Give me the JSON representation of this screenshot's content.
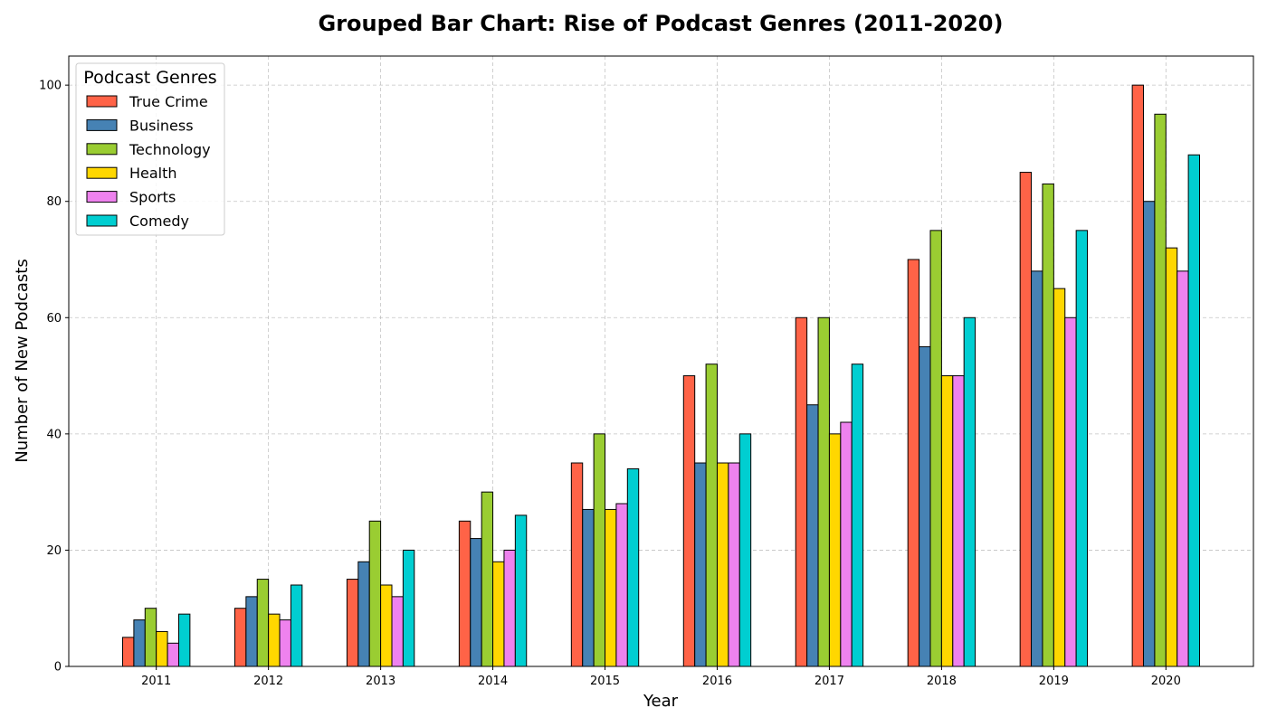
{
  "chart_data": {
    "type": "bar",
    "title": "Grouped Bar Chart: Rise of Podcast Genres (2011-2020)",
    "xlabel": "Year",
    "ylabel": "Number of New Podcasts",
    "categories": [
      "2011",
      "2012",
      "2013",
      "2014",
      "2015",
      "2016",
      "2017",
      "2018",
      "2019",
      "2020"
    ],
    "ylim": [
      0,
      105
    ],
    "yticks": [
      0,
      20,
      40,
      60,
      80,
      100
    ],
    "grid": true,
    "legend": {
      "title": "Podcast Genres",
      "placement": "top-left"
    },
    "series": [
      {
        "name": "True Crime",
        "color": "#FF6347",
        "values": [
          5,
          10,
          15,
          25,
          35,
          50,
          60,
          70,
          85,
          100
        ]
      },
      {
        "name": "Business",
        "color": "#4682B4",
        "values": [
          8,
          12,
          18,
          22,
          27,
          35,
          45,
          55,
          68,
          80
        ]
      },
      {
        "name": "Technology",
        "color": "#9ACD32",
        "values": [
          10,
          15,
          25,
          30,
          40,
          52,
          60,
          75,
          83,
          95
        ]
      },
      {
        "name": "Health",
        "color": "#FFD700",
        "values": [
          6,
          9,
          14,
          18,
          27,
          35,
          40,
          50,
          65,
          72
        ]
      },
      {
        "name": "Sports",
        "color": "#EE82EE",
        "values": [
          4,
          8,
          12,
          20,
          28,
          35,
          42,
          50,
          60,
          68
        ]
      },
      {
        "name": "Comedy",
        "color": "#00CED1",
        "values": [
          9,
          14,
          20,
          26,
          34,
          40,
          52,
          60,
          75,
          88
        ]
      }
    ]
  }
}
